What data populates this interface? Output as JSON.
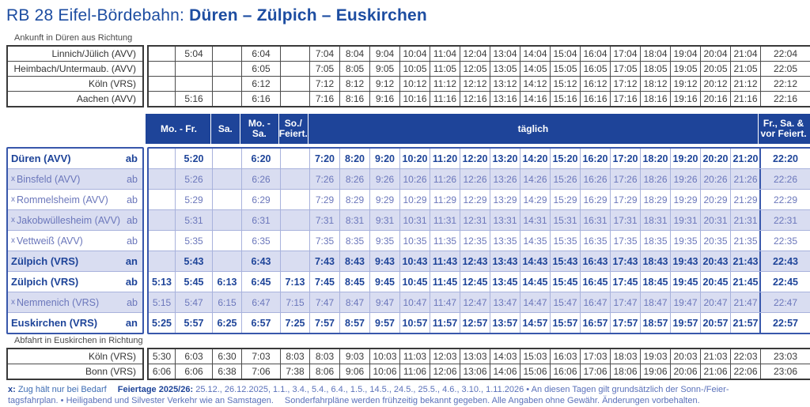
{
  "title": {
    "prefix": "RB 28 Eifel-Bördebahn: ",
    "route": "Düren – Zülpich – Euskirchen"
  },
  "colors": {
    "accent_navy": "#1e4499",
    "title_blue": "#1d4da1",
    "row_highlight": "#d9ddf1",
    "light_time_text": "#6b77bb",
    "main_border": "#3857ab",
    "plain_table_text": "#3a3a3a"
  },
  "arrival": {
    "caption": "Ankunft in Düren aus Richtung",
    "rows": [
      {
        "label": "Linnich/Jülich (AVV)",
        "times": [
          "",
          "5:04",
          "",
          "6:04",
          "",
          "7:04",
          "8:04",
          "9:04",
          "10:04",
          "11:04",
          "12:04",
          "13:04",
          "14:04",
          "15:04",
          "16:04",
          "17:04",
          "18:04",
          "19:04",
          "20:04",
          "21:04",
          "22:04"
        ]
      },
      {
        "label": "Heimbach/Untermaub. (AVV)",
        "times": [
          "",
          "",
          "",
          "6:05",
          "",
          "7:05",
          "8:05",
          "9:05",
          "10:05",
          "11:05",
          "12:05",
          "13:05",
          "14:05",
          "15:05",
          "16:05",
          "17:05",
          "18:05",
          "19:05",
          "20:05",
          "21:05",
          "22:05"
        ]
      },
      {
        "label": "Köln (VRS)",
        "times": [
          "",
          "",
          "",
          "6:12",
          "",
          "7:12",
          "8:12",
          "9:12",
          "10:12",
          "11:12",
          "12:12",
          "13:12",
          "14:12",
          "15:12",
          "16:12",
          "17:12",
          "18:12",
          "19:12",
          "20:12",
          "21:12",
          "22:12"
        ]
      },
      {
        "label": "Aachen (AVV)",
        "times": [
          "",
          "5:16",
          "",
          "6:16",
          "",
          "7:16",
          "8:16",
          "9:16",
          "10:16",
          "11:16",
          "12:16",
          "13:16",
          "14:16",
          "15:16",
          "16:16",
          "17:16",
          "18:16",
          "19:16",
          "20:16",
          "21:16",
          "22:16"
        ]
      }
    ]
  },
  "main": {
    "header": [
      {
        "label": "Mo. - Fr.",
        "span": 2
      },
      {
        "label": "Sa.",
        "span": 1
      },
      {
        "label": "Mo. - Sa.",
        "span": 1
      },
      {
        "label": "So./\nFeiert.",
        "span": 1
      },
      {
        "label": "täglich",
        "span": 15
      },
      {
        "label": "Fr., Sa. &\nvor Feiert.",
        "span": 1
      }
    ],
    "stations": [
      {
        "x": false,
        "name": "Düren (AVV)",
        "stop": "ab",
        "bold": true
      },
      {
        "x": true,
        "name": "Binsfeld (AVV)",
        "stop": "ab",
        "bold": false
      },
      {
        "x": true,
        "name": "Rommelsheim (AVV)",
        "stop": "ab",
        "bold": false
      },
      {
        "x": true,
        "name": "Jakobwüllesheim (AVV)",
        "stop": "ab",
        "bold": false
      },
      {
        "x": true,
        "name": "Vettweiß (AVV)",
        "stop": "ab",
        "bold": false
      },
      {
        "x": false,
        "name": "Zülpich (VRS)",
        "stop": "an",
        "bold": true
      },
      {
        "x": false,
        "name": "Zülpich (VRS)",
        "stop": "ab",
        "bold": true
      },
      {
        "x": true,
        "name": "Nemmenich (VRS)",
        "stop": "ab",
        "bold": false
      },
      {
        "x": false,
        "name": "Euskirchen (VRS)",
        "stop": "an",
        "bold": true
      }
    ],
    "rows": [
      [
        "",
        "5:20",
        "",
        "6:20",
        "",
        "7:20",
        "8:20",
        "9:20",
        "10:20",
        "11:20",
        "12:20",
        "13:20",
        "14:20",
        "15:20",
        "16:20",
        "17:20",
        "18:20",
        "19:20",
        "20:20",
        "21:20",
        "22:20"
      ],
      [
        "",
        "5:26",
        "",
        "6:26",
        "",
        "7:26",
        "8:26",
        "9:26",
        "10:26",
        "11:26",
        "12:26",
        "13:26",
        "14:26",
        "15:26",
        "16:26",
        "17:26",
        "18:26",
        "19:26",
        "20:26",
        "21:26",
        "22:26"
      ],
      [
        "",
        "5:29",
        "",
        "6:29",
        "",
        "7:29",
        "8:29",
        "9:29",
        "10:29",
        "11:29",
        "12:29",
        "13:29",
        "14:29",
        "15:29",
        "16:29",
        "17:29",
        "18:29",
        "19:29",
        "20:29",
        "21:29",
        "22:29"
      ],
      [
        "",
        "5:31",
        "",
        "6:31",
        "",
        "7:31",
        "8:31",
        "9:31",
        "10:31",
        "11:31",
        "12:31",
        "13:31",
        "14:31",
        "15:31",
        "16:31",
        "17:31",
        "18:31",
        "19:31",
        "20:31",
        "21:31",
        "22:31"
      ],
      [
        "",
        "5:35",
        "",
        "6:35",
        "",
        "7:35",
        "8:35",
        "9:35",
        "10:35",
        "11:35",
        "12:35",
        "13:35",
        "14:35",
        "15:35",
        "16:35",
        "17:35",
        "18:35",
        "19:35",
        "20:35",
        "21:35",
        "22:35"
      ],
      [
        "",
        "5:43",
        "",
        "6:43",
        "",
        "7:43",
        "8:43",
        "9:43",
        "10:43",
        "11:43",
        "12:43",
        "13:43",
        "14:43",
        "15:43",
        "16:43",
        "17:43",
        "18:43",
        "19:43",
        "20:43",
        "21:43",
        "22:43"
      ],
      [
        "5:13",
        "5:45",
        "6:13",
        "6:45",
        "7:13",
        "7:45",
        "8:45",
        "9:45",
        "10:45",
        "11:45",
        "12:45",
        "13:45",
        "14:45",
        "15:45",
        "16:45",
        "17:45",
        "18:45",
        "19:45",
        "20:45",
        "21:45",
        "22:45"
      ],
      [
        "5:15",
        "5:47",
        "6:15",
        "6:47",
        "7:15",
        "7:47",
        "8:47",
        "9:47",
        "10:47",
        "11:47",
        "12:47",
        "13:47",
        "14:47",
        "15:47",
        "16:47",
        "17:47",
        "18:47",
        "19:47",
        "20:47",
        "21:47",
        "22:47"
      ],
      [
        "5:25",
        "5:57",
        "6:25",
        "6:57",
        "7:25",
        "7:57",
        "8:57",
        "9:57",
        "10:57",
        "11:57",
        "12:57",
        "13:57",
        "14:57",
        "15:57",
        "16:57",
        "17:57",
        "18:57",
        "19:57",
        "20:57",
        "21:57",
        "22:57"
      ]
    ]
  },
  "departure": {
    "caption": "Abfahrt in Euskirchen in Richtung",
    "rows": [
      {
        "label": "Köln (VRS)",
        "times": [
          "5:30",
          "6:03",
          "6:30",
          "7:03",
          "8:03",
          "8:03",
          "9:03",
          "10:03",
          "11:03",
          "12:03",
          "13:03",
          "14:03",
          "15:03",
          "16:03",
          "17:03",
          "18:03",
          "19:03",
          "20:03",
          "21:03",
          "22:03",
          "23:03"
        ]
      },
      {
        "label": "Bonn (VRS)",
        "times": [
          "6:06",
          "6:06",
          "6:38",
          "7:06",
          "7:38",
          "8:06",
          "9:06",
          "10:06",
          "11:06",
          "12:06",
          "13:06",
          "14:06",
          "15:06",
          "16:06",
          "17:06",
          "18:06",
          "19:06",
          "20:06",
          "21:06",
          "22:06",
          "23:06"
        ]
      }
    ]
  },
  "footer": {
    "line1": [
      {
        "text": "x:",
        "style": "bold"
      },
      {
        "text": " Zug hält nur bei Bedarf",
        "style": "medium"
      },
      {
        "text": "Feiertage 2025/26:",
        "style": "bold",
        "gap": true
      },
      {
        "text": " 25.12., 26.12.2025, 1.1., 3.4., 5.4., 6.4., 1.5., 14.5., 24.5., 25.5., 4.6., 3.10., 1.11.2026 • An diesen Tagen gilt grundsätzlich der Sonn-/Feier-",
        "style": "light"
      }
    ],
    "line2": [
      {
        "text": "tagsfahrplan. • Heiligabend und Silvester Verkehr wie an Samstagen.",
        "style": "light"
      },
      {
        "text": "Sonderfahrpläne werden frühzeitig bekannt gegeben. Alle Angaben ohne Gewähr. Änderungen vorbehalten.",
        "style": "light",
        "gap": true
      }
    ]
  }
}
